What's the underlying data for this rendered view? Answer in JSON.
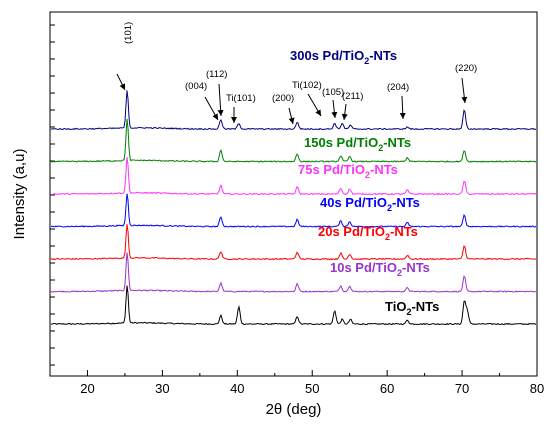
{
  "chart_data": {
    "type": "line",
    "xlabel": "2θ (deg)",
    "ylabel": "Intensity (a,u)",
    "xlim": [
      15,
      80
    ],
    "xticks": [
      20,
      30,
      40,
      50,
      60,
      70,
      80
    ],
    "yticks_labeled": false,
    "grid": false,
    "series": [
      {
        "label_main": "TiO",
        "label_sub": "2",
        "label_tail": "-NTs",
        "color": "#000000",
        "baseline": 0.0,
        "peaks": [
          [
            25.3,
            1.0
          ],
          [
            37.8,
            0.22
          ],
          [
            40.2,
            0.45
          ],
          [
            48.0,
            0.2
          ],
          [
            53.0,
            0.35
          ],
          [
            54.0,
            0.12
          ],
          [
            55.1,
            0.12
          ],
          [
            62.7,
            0.1
          ],
          [
            70.3,
            0.6
          ],
          [
            70.7,
            0.35
          ]
        ]
      },
      {
        "label_main": "10s Pd/TiO",
        "label_sub": "2",
        "label_tail": "-NTs",
        "color": "#9933cc",
        "baseline": 1.0,
        "peaks": [
          [
            25.3,
            1.0
          ],
          [
            37.8,
            0.22
          ],
          [
            48.0,
            0.2
          ],
          [
            53.8,
            0.15
          ],
          [
            55.0,
            0.15
          ],
          [
            62.7,
            0.1
          ],
          [
            70.3,
            0.4
          ]
        ]
      },
      {
        "label_main": "20s Pd/TiO",
        "label_sub": "2",
        "label_tail": "-NTs",
        "color": "#ff0000",
        "baseline": 2.0,
        "peaks": [
          [
            25.3,
            0.9
          ],
          [
            37.8,
            0.2
          ],
          [
            48.0,
            0.18
          ],
          [
            53.8,
            0.15
          ],
          [
            55.0,
            0.13
          ],
          [
            62.7,
            0.1
          ],
          [
            70.3,
            0.35
          ]
        ]
      },
      {
        "label_main": "40s Pd/TiO",
        "label_sub": "2",
        "label_tail": "-NTs",
        "color": "#0000ff",
        "baseline": 3.0,
        "peaks": [
          [
            25.3,
            0.85
          ],
          [
            37.8,
            0.25
          ],
          [
            48.0,
            0.18
          ],
          [
            53.8,
            0.15
          ],
          [
            55.0,
            0.13
          ],
          [
            62.7,
            0.1
          ],
          [
            70.3,
            0.3
          ]
        ]
      },
      {
        "label_main": "75s Pd/TiO",
        "label_sub": "2",
        "label_tail": "-NTs",
        "color": "#ff33ff",
        "baseline": 4.0,
        "peaks": [
          [
            25.3,
            0.95
          ],
          [
            37.8,
            0.22
          ],
          [
            48.0,
            0.18
          ],
          [
            53.8,
            0.15
          ],
          [
            55.0,
            0.13
          ],
          [
            62.7,
            0.1
          ],
          [
            70.3,
            0.35
          ]
        ]
      },
      {
        "label_main": "150s Pd/TiO",
        "label_sub": "2",
        "label_tail": "-NTs",
        "color": "#008000",
        "baseline": 5.0,
        "peaks": [
          [
            25.3,
            1.1
          ],
          [
            37.8,
            0.3
          ],
          [
            48.0,
            0.2
          ],
          [
            53.8,
            0.15
          ],
          [
            55.0,
            0.13
          ],
          [
            62.7,
            0.1
          ],
          [
            70.3,
            0.3
          ]
        ]
      },
      {
        "label_main": "300s Pd/TiO",
        "label_sub": "2",
        "label_tail": "-NTs",
        "color": "#000080",
        "baseline": 6.0,
        "peaks": [
          [
            25.3,
            1.0
          ],
          [
            37.8,
            0.25
          ],
          [
            40.2,
            0.15
          ],
          [
            48.0,
            0.18
          ],
          [
            53.0,
            0.15
          ],
          [
            54.0,
            0.15
          ],
          [
            55.1,
            0.1
          ],
          [
            62.7,
            0.05
          ],
          [
            70.3,
            0.5
          ]
        ]
      }
    ],
    "annotations": [
      {
        "text": "(101)",
        "x": 25.3
      },
      {
        "text": "(004)",
        "x": 37.8
      },
      {
        "text": "(112)",
        "x": 38.6
      },
      {
        "text": "Ti(101)",
        "x": 40.2
      },
      {
        "text": "(200)",
        "x": 48.0
      },
      {
        "text": "Ti(102)",
        "x": 53.0
      },
      {
        "text": "(105)",
        "x": 53.9
      },
      {
        "text": "(211)",
        "x": 55.1
      },
      {
        "text": "(204)",
        "x": 62.7
      },
      {
        "text": "(220)",
        "x": 70.3
      }
    ]
  }
}
